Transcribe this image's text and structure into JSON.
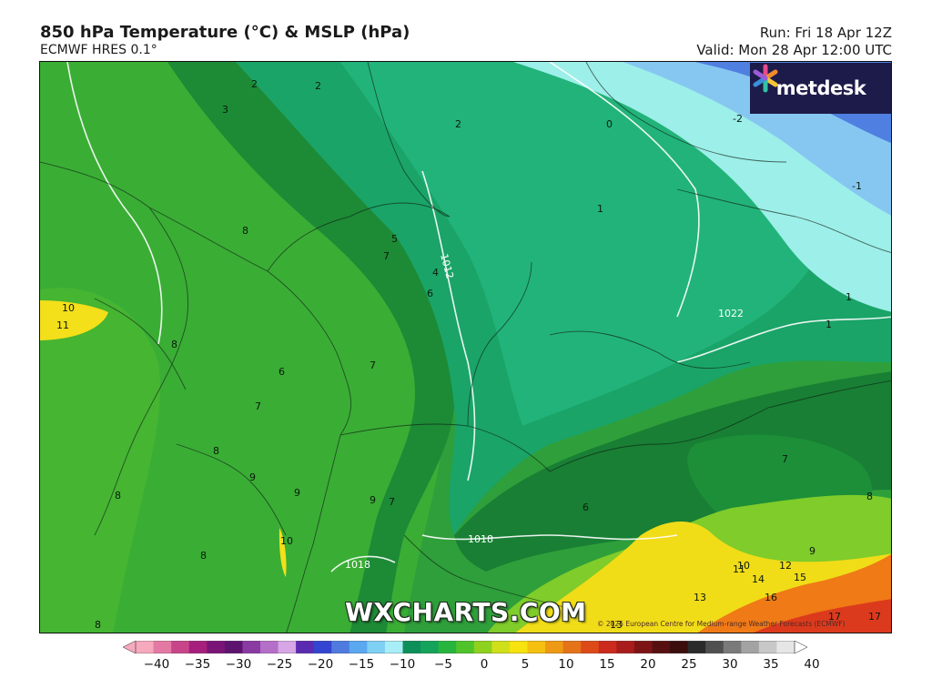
{
  "header": {
    "title": "850 hPa Temperature (°C) & MSLP (hPa)",
    "subtitle": "ECMWF HRES 0.1°",
    "run": "Run: Fri 18 Apr 12Z",
    "valid": "Valid: Mon 28 Apr 12:00 UTC"
  },
  "logo": {
    "text": "metdesk",
    "icon": "metdesk-asterisk-icon"
  },
  "watermark": "WXCHARTS.COM",
  "credit": "© 2025 European Centre for Medium-range Weather Forecasts (ECMWF)",
  "map_labels": {
    "temperature": [
      "2",
      "2",
      "3",
      "2",
      "0",
      "-2",
      "-1",
      "1",
      "8",
      "5",
      "4",
      "7",
      "6",
      "10",
      "11",
      "1",
      "1",
      "8",
      "7",
      "6",
      "7",
      "9",
      "8",
      "9",
      "9",
      "7",
      "10",
      "8",
      "8",
      "8",
      "6",
      "7",
      "9",
      "8",
      "10",
      "12",
      "14",
      "15",
      "16",
      "13",
      "17",
      "17",
      "11",
      "13",
      "-2"
    ],
    "pressure": [
      "1012",
      "1022",
      "1018",
      "1018"
    ]
  },
  "colorbar": {
    "ticks": [
      "−40",
      "−35",
      "−30",
      "−25",
      "−20",
      "−15",
      "−10",
      "−5",
      "0",
      "5",
      "10",
      "15",
      "20",
      "25",
      "30",
      "35",
      "40"
    ],
    "colors": [
      "#f7a9bd",
      "#e47aa3",
      "#c9458a",
      "#a61f7d",
      "#7a1577",
      "#5c146f",
      "#8a3aa3",
      "#b46fc8",
      "#d6a6e6",
      "#5a2bb0",
      "#3344d0",
      "#4f7be0",
      "#5aa8f0",
      "#7fd0f5",
      "#a8eef7",
      "#0d8f5a",
      "#14a35a",
      "#27b53d",
      "#4fc42a",
      "#8fd11f",
      "#cfe01a",
      "#f6e30f",
      "#f5c010",
      "#ee9a14",
      "#e57317",
      "#dd4a18",
      "#cc2a1c",
      "#a81c1c",
      "#7d1414",
      "#571010",
      "#3b0d0d",
      "#2b2b2b",
      "#505050",
      "#7a7a7a",
      "#a3a3a3",
      "#c8c8c8",
      "#e6e6e6"
    ]
  }
}
